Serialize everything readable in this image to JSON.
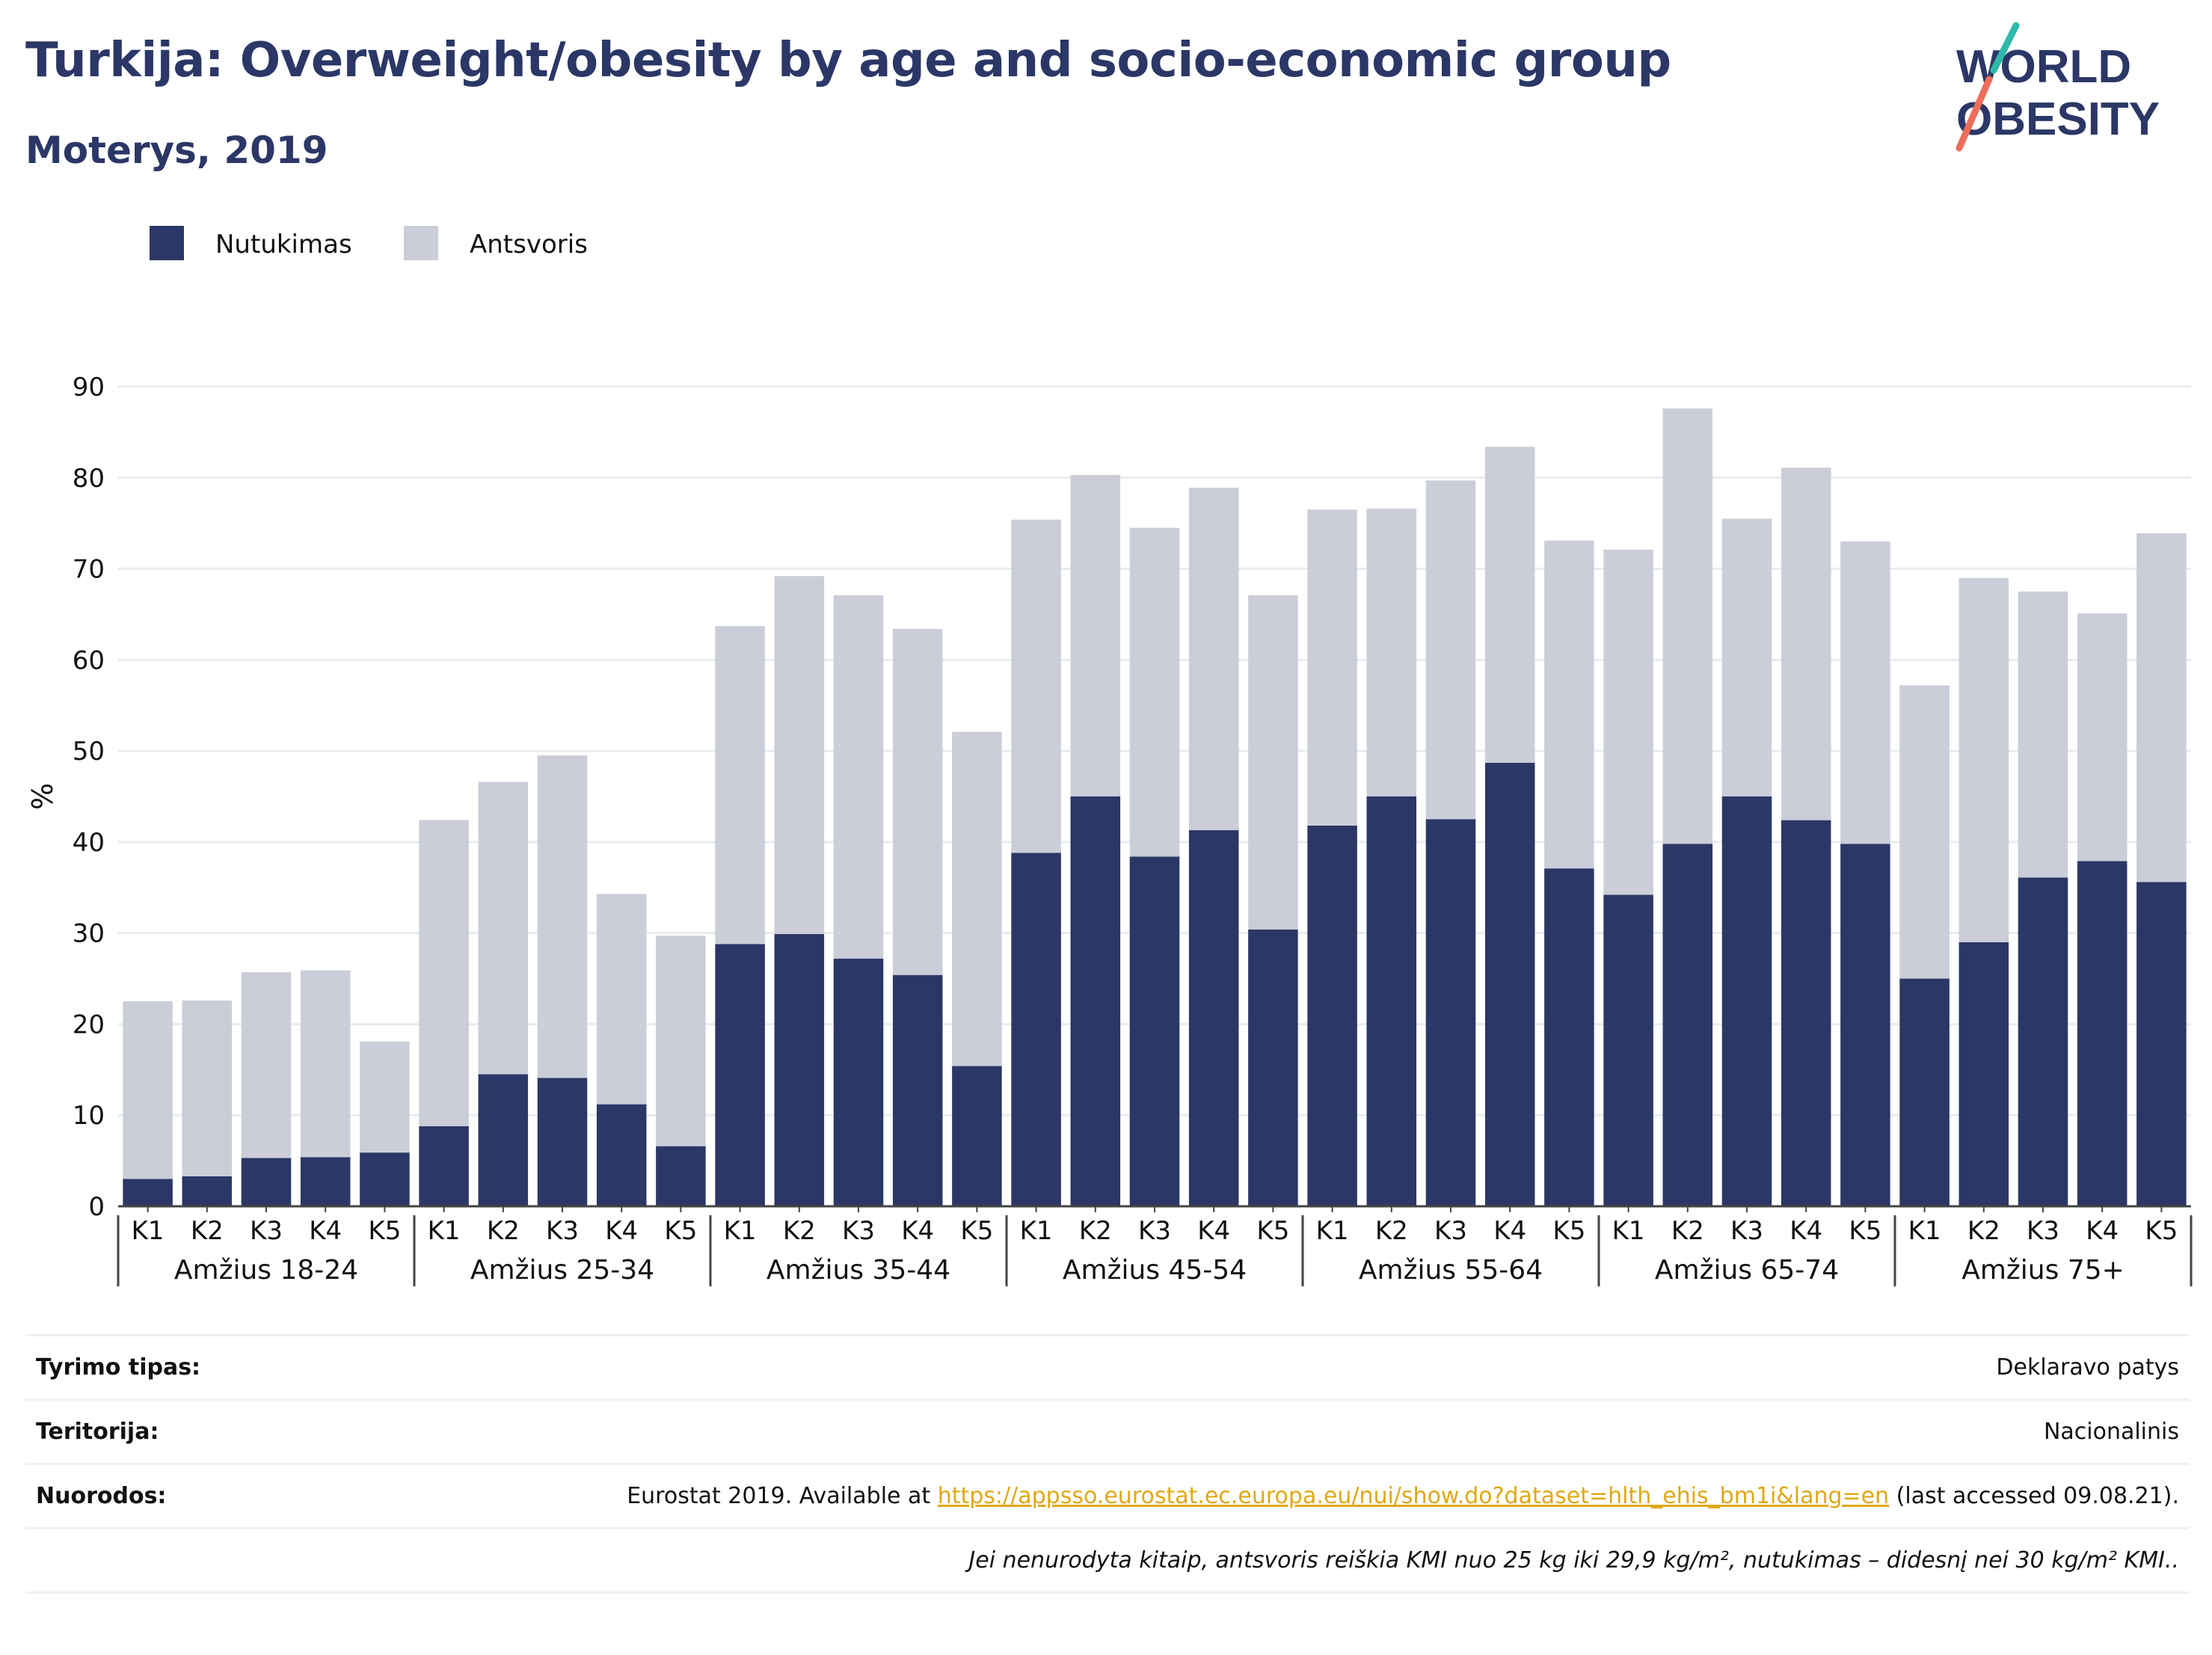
{
  "header": {
    "title": "Turkija: Overweight/obesity by age and socio-economic group",
    "subtitle": "Moterys, 2019",
    "logo_line1": "WORLD",
    "logo_line2": "OBESITY"
  },
  "colors": {
    "obesity": "#2b3766",
    "overweight": "#cbcdd8",
    "title": "#2b3766",
    "link": "#e0a816",
    "logo_teal": "#2fb9a8",
    "logo_coral": "#ec6f5c"
  },
  "chart_data": {
    "type": "bar",
    "stacked": true,
    "title": "Turkija: Overweight/obesity by age and socio-economic group",
    "subtitle": "Moterys, 2019",
    "ylabel": "%",
    "ylim": [
      0,
      90
    ],
    "yticks": [
      0,
      10,
      20,
      30,
      40,
      50,
      60,
      70,
      80,
      90
    ],
    "grid": true,
    "legend_position": "top-left",
    "groups": [
      "Amžius 18-24",
      "Amžius 25-34",
      "Amžius 35-44",
      "Amžius 45-54",
      "Amžius 55-64",
      "Amžius 65-74",
      "Amžius 75+"
    ],
    "subcategories": [
      "K1",
      "K2",
      "K3",
      "K4",
      "K5"
    ],
    "series": [
      {
        "name": "Nutukimas",
        "color": "#2b3766",
        "values": [
          3.0,
          3.3,
          5.3,
          5.4,
          5.9,
          8.8,
          14.5,
          14.1,
          11.2,
          6.6,
          28.8,
          29.9,
          27.2,
          25.4,
          15.4,
          38.8,
          45.0,
          38.4,
          41.3,
          30.4,
          41.8,
          45.0,
          42.5,
          48.7,
          37.1,
          34.2,
          39.8,
          45.0,
          42.4,
          39.8,
          25.0,
          29.0,
          36.1,
          37.9,
          35.6
        ]
      },
      {
        "name": "Antsvoris",
        "color": "#cbcdd8",
        "values": [
          19.5,
          19.3,
          20.4,
          20.5,
          12.2,
          33.6,
          32.1,
          35.4,
          23.1,
          23.1,
          34.9,
          39.3,
          39.9,
          38.0,
          36.7,
          36.6,
          35.3,
          36.1,
          37.6,
          36.7,
          34.7,
          31.6,
          37.2,
          34.7,
          36.0,
          37.9,
          47.8,
          30.5,
          38.7,
          33.2,
          32.2,
          40.0,
          31.4,
          27.2,
          38.3
        ]
      }
    ]
  },
  "info": {
    "rows": [
      {
        "key": "Tyrimo tipas:",
        "value": "Deklaravo patys"
      },
      {
        "key": "Teritorija:",
        "value": "Nacionalinis"
      }
    ],
    "source_key": "Nuorodos:",
    "source_prefix": "Eurostat 2019. Available at ",
    "source_link": "https://appsso.eurostat.ec.europa.eu/nui/show.do?dataset=hlth_ehis_bm1i&lang=en",
    "source_suffix": " (last accessed 09.08.21).",
    "note": "Jei nenurodyta kitaip, antsvoris reiškia KMI nuo 25 kg iki 29,9 kg/m², nutukimas – didesnį nei 30 kg/m² KMI.."
  }
}
